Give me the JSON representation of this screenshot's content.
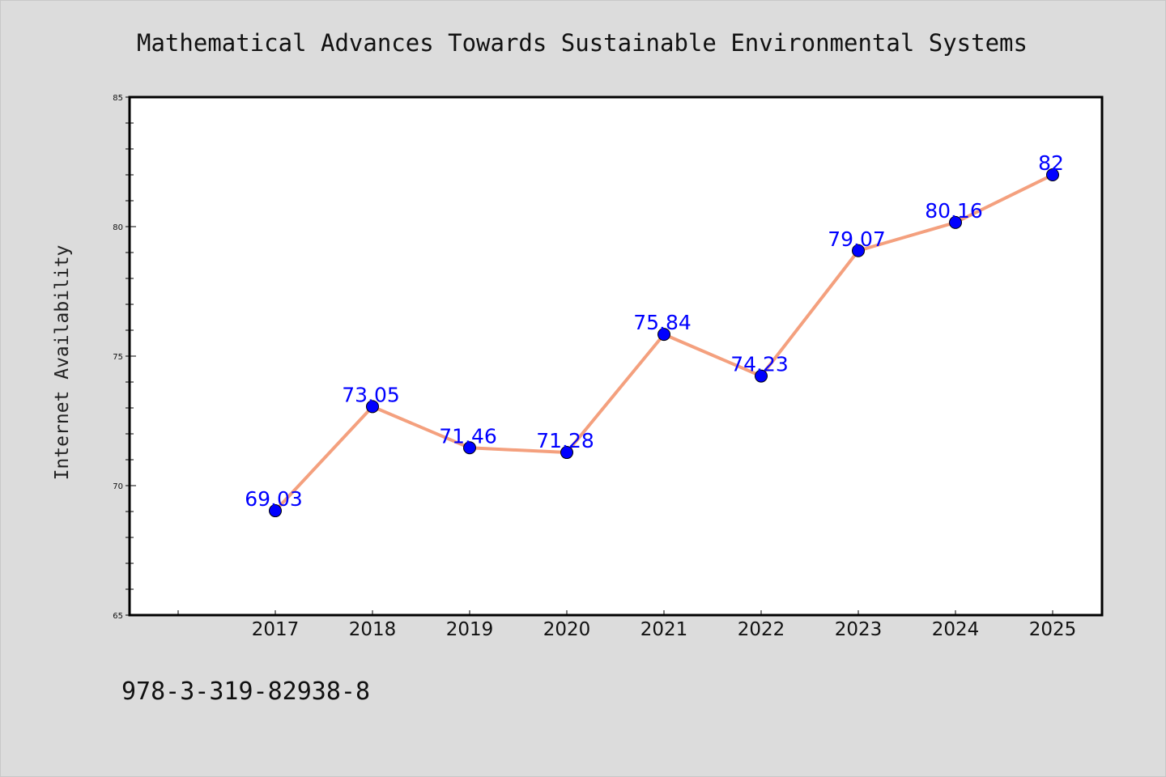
{
  "chart_data": {
    "type": "line",
    "title": "Mathematical Advances Towards Sustainable Environmental Systems",
    "xlabel": "",
    "ylabel": "Internet Availability",
    "categories": [
      "2017",
      "2018",
      "2019",
      "2020",
      "2021",
      "2022",
      "2023",
      "2024",
      "2025"
    ],
    "series": [
      {
        "values": [
          69.03,
          73.05,
          71.46,
          71.28,
          75.84,
          74.23,
          79.07,
          80.16,
          82
        ],
        "labels": [
          "69.03",
          "73.05",
          "71.46",
          "71.28",
          "75.84",
          "74.23",
          "79.07",
          "80.16",
          "82"
        ]
      }
    ],
    "ylim": [
      65,
      85
    ],
    "yticks": [
      "65",
      "70",
      "75",
      "80",
      "85"
    ],
    "grid": false,
    "legend": "none",
    "colors": {
      "line": "#f4a07e",
      "marker": "#0000ff",
      "data_label": "#0000ff",
      "background": "#dcdcdc",
      "plot_area": "#ffffff"
    }
  },
  "footer": {
    "text": "978-3-319-82938-8"
  }
}
